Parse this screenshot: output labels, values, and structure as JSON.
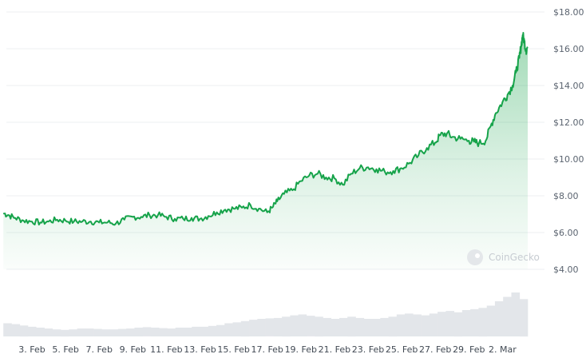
{
  "chart_data": {
    "type": "area",
    "x_tick_labels": [
      "3. Feb",
      "5. Feb",
      "7. Feb",
      "9. Feb",
      "11. Feb",
      "13. Feb",
      "15. Feb",
      "17. Feb",
      "19. Feb",
      "21. Feb",
      "23. Feb",
      "25. Feb",
      "27. Feb",
      "29. Feb",
      "2. Mar"
    ],
    "y_tick_labels": [
      "$18.00",
      "$16.00",
      "$14.00",
      "$12.00",
      "$10.00",
      "$8.00",
      "$6.00",
      "$4.00"
    ],
    "y_ticks": [
      18,
      16,
      14,
      12,
      10,
      8,
      6,
      4
    ],
    "ylim": [
      4,
      18
    ],
    "x_range_days": [
      1.3,
      32.5
    ],
    "grid": true,
    "legend": "none",
    "watermark": "CoinGecko",
    "series": [
      {
        "x": [
          1.3,
          1.6,
          2.0,
          2.5,
          3.0,
          3.5,
          4.0,
          4.5,
          5.0,
          5.5,
          6.0,
          6.5,
          7.0,
          7.5,
          8.0,
          8.5,
          9.0,
          9.5,
          10.0,
          10.5,
          11.0,
          11.5,
          12.0,
          12.5,
          13.0,
          13.5,
          14.0,
          14.5,
          15.0,
          15.5,
          16.0,
          16.5,
          17.0,
          17.3,
          17.6,
          18.0,
          18.5,
          19.0,
          19.5,
          20.0,
          20.5,
          21.0,
          21.5,
          22.0,
          22.5,
          23.0,
          23.5,
          24.0,
          24.5,
          25.0,
          25.5,
          26.0,
          26.5,
          27.0,
          27.3,
          27.7,
          28.0,
          28.5,
          29.0,
          29.3,
          29.6,
          30.0,
          30.3,
          30.6,
          31.0,
          31.3,
          31.6,
          31.8,
          32.0,
          32.1,
          32.2,
          32.3,
          32.4,
          32.5
        ],
        "values": [
          7.05,
          6.95,
          6.8,
          6.65,
          6.6,
          6.55,
          6.6,
          6.7,
          6.65,
          6.6,
          6.6,
          6.6,
          6.55,
          6.55,
          6.5,
          6.7,
          6.85,
          6.85,
          6.95,
          6.95,
          6.85,
          6.75,
          6.75,
          6.8,
          6.75,
          6.9,
          7.1,
          7.25,
          7.3,
          7.35,
          7.5,
          7.3,
          7.1,
          7.35,
          7.7,
          8.1,
          8.3,
          8.8,
          9.1,
          9.2,
          9.0,
          8.95,
          8.6,
          9.2,
          9.5,
          9.55,
          9.45,
          9.3,
          9.35,
          9.5,
          9.8,
          10.2,
          10.6,
          10.9,
          11.3,
          11.4,
          11.2,
          11.1,
          11.0,
          10.95,
          10.85,
          11.0,
          11.8,
          12.5,
          13.1,
          13.5,
          14.0,
          14.7,
          15.5,
          16.1,
          16.75,
          16.4,
          15.9,
          16.1
        ]
      }
    ],
    "volume_relative": [
      0.3,
      0.28,
      0.25,
      0.22,
      0.2,
      0.18,
      0.16,
      0.15,
      0.16,
      0.18,
      0.18,
      0.17,
      0.16,
      0.16,
      0.17,
      0.18,
      0.2,
      0.21,
      0.2,
      0.19,
      0.18,
      0.2,
      0.2,
      0.22,
      0.22,
      0.24,
      0.26,
      0.3,
      0.32,
      0.35,
      0.38,
      0.4,
      0.41,
      0.42,
      0.45,
      0.48,
      0.5,
      0.47,
      0.45,
      0.42,
      0.4,
      0.42,
      0.45,
      0.42,
      0.4,
      0.4,
      0.42,
      0.45,
      0.5,
      0.52,
      0.5,
      0.48,
      0.52,
      0.56,
      0.58,
      0.55,
      0.6,
      0.62,
      0.65,
      0.7,
      0.8,
      0.9,
      1.0,
      0.85
    ]
  }
}
